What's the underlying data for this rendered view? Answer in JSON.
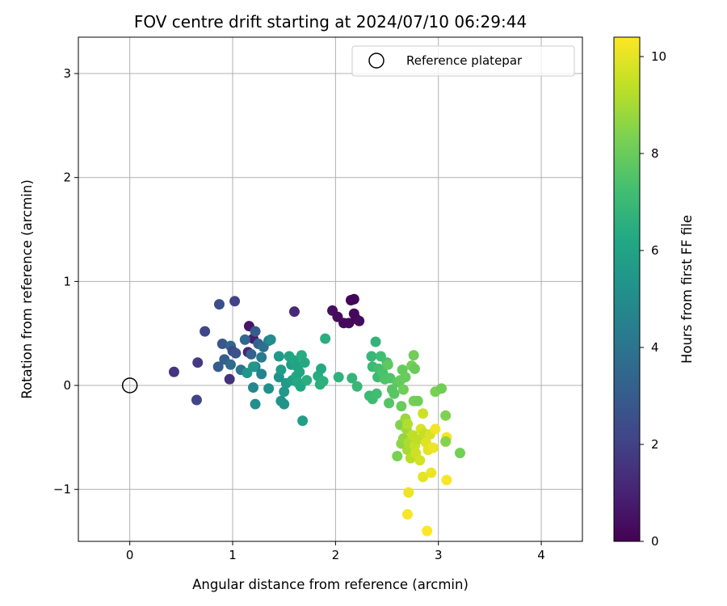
{
  "chart_data": {
    "type": "scatter",
    "title": "FOV centre drift starting at 2024/07/10 06:29:44",
    "xlabel": "Angular distance from reference (arcmin)",
    "ylabel": "Rotation from reference (arcmin)",
    "xlim": [
      -0.5,
      4.4
    ],
    "ylim": [
      -1.5,
      3.35
    ],
    "xticks": [
      "0",
      "1",
      "2",
      "3",
      "4"
    ],
    "yticks": [
      "−1",
      "0",
      "1",
      "2",
      "3"
    ],
    "grid": true,
    "legend": {
      "placement": "top-right",
      "entries": [
        "Reference platepar"
      ]
    },
    "reference_point": {
      "x": 0,
      "y": 0,
      "marker": "open-circle",
      "color": "#000000"
    },
    "colorbar": {
      "label": "Hours from first FF file",
      "min": 0,
      "max": 10.4,
      "ticks": [
        "0",
        "2",
        "4",
        "6",
        "8",
        "10"
      ],
      "colormap": "viridis"
    },
    "points": [
      {
        "x": 1.16,
        "y": 0.57,
        "h": 0.6
      },
      {
        "x": 1.2,
        "y": 0.45,
        "h": 0.9
      },
      {
        "x": 1.15,
        "y": 0.32,
        "h": 1.0
      },
      {
        "x": 1.97,
        "y": 0.72,
        "h": 0.4
      },
      {
        "x": 2.02,
        "y": 0.66,
        "h": 0.3
      },
      {
        "x": 2.08,
        "y": 0.6,
        "h": 0.2
      },
      {
        "x": 2.13,
        "y": 0.6,
        "h": 0.2
      },
      {
        "x": 2.15,
        "y": 0.82,
        "h": 0.1
      },
      {
        "x": 2.18,
        "y": 0.83,
        "h": 0.1
      },
      {
        "x": 2.18,
        "y": 0.69,
        "h": 0.2
      },
      {
        "x": 2.2,
        "y": 0.64,
        "h": 0.2
      },
      {
        "x": 2.23,
        "y": 0.62,
        "h": 0.3
      },
      {
        "x": 1.6,
        "y": 0.71,
        "h": 1.2
      },
      {
        "x": 0.43,
        "y": 0.13,
        "h": 1.6
      },
      {
        "x": 0.65,
        "y": -0.14,
        "h": 2.1
      },
      {
        "x": 0.66,
        "y": 0.22,
        "h": 1.8
      },
      {
        "x": 0.73,
        "y": 0.52,
        "h": 2.2
      },
      {
        "x": 0.87,
        "y": 0.78,
        "h": 2.5
      },
      {
        "x": 1.02,
        "y": 0.81,
        "h": 2.1
      },
      {
        "x": 0.97,
        "y": 0.06,
        "h": 1.5
      },
      {
        "x": 0.86,
        "y": 0.18,
        "h": 3.0
      },
      {
        "x": 0.92,
        "y": 0.25,
        "h": 3.1
      },
      {
        "x": 0.9,
        "y": 0.4,
        "h": 2.8
      },
      {
        "x": 0.98,
        "y": 0.38,
        "h": 3.4
      },
      {
        "x": 1.0,
        "y": 0.33,
        "h": 2.3
      },
      {
        "x": 1.03,
        "y": 0.31,
        "h": 2.7
      },
      {
        "x": 0.98,
        "y": 0.2,
        "h": 3.6
      },
      {
        "x": 1.08,
        "y": 0.15,
        "h": 4.0
      },
      {
        "x": 1.12,
        "y": 0.44,
        "h": 3.5
      },
      {
        "x": 1.18,
        "y": 0.3,
        "h": 3.2
      },
      {
        "x": 1.22,
        "y": 0.52,
        "h": 3.0
      },
      {
        "x": 1.25,
        "y": 0.4,
        "h": 3.3
      },
      {
        "x": 1.28,
        "y": 0.27,
        "h": 4.2
      },
      {
        "x": 1.3,
        "y": 0.37,
        "h": 3.8
      },
      {
        "x": 1.22,
        "y": 0.18,
        "h": 4.5
      },
      {
        "x": 1.28,
        "y": 0.11,
        "h": 4.6
      },
      {
        "x": 1.35,
        "y": 0.43,
        "h": 4.4
      },
      {
        "x": 1.2,
        "y": -0.02,
        "h": 4.8
      },
      {
        "x": 1.22,
        "y": -0.18,
        "h": 5.1
      },
      {
        "x": 1.35,
        "y": -0.03,
        "h": 5.2
      },
      {
        "x": 1.37,
        "y": 0.44,
        "h": 5.0
      },
      {
        "x": 1.14,
        "y": 0.12,
        "h": 5.4
      },
      {
        "x": 1.2,
        "y": 0.18,
        "h": 5.5
      },
      {
        "x": 1.45,
        "y": 0.08,
        "h": 5.3
      },
      {
        "x": 1.45,
        "y": 0.28,
        "h": 5.6
      },
      {
        "x": 1.47,
        "y": 0.15,
        "h": 5.7
      },
      {
        "x": 1.47,
        "y": -0.15,
        "h": 5.4
      },
      {
        "x": 1.5,
        "y": -0.18,
        "h": 5.3
      },
      {
        "x": 1.5,
        "y": -0.06,
        "h": 5.5
      },
      {
        "x": 1.52,
        "y": 0.02,
        "h": 5.6
      },
      {
        "x": 1.55,
        "y": 0.28,
        "h": 6.0
      },
      {
        "x": 1.57,
        "y": 0.2,
        "h": 5.8
      },
      {
        "x": 1.58,
        "y": 0.05,
        "h": 5.9
      },
      {
        "x": 1.6,
        "y": 0.24,
        "h": 6.1
      },
      {
        "x": 1.62,
        "y": 0.09,
        "h": 6.2
      },
      {
        "x": 1.63,
        "y": 0.18,
        "h": 6.0
      },
      {
        "x": 1.63,
        "y": 0.03,
        "h": 6.3
      },
      {
        "x": 1.65,
        "y": 0.13,
        "h": 6.1
      },
      {
        "x": 1.66,
        "y": -0.01,
        "h": 6.2
      },
      {
        "x": 1.67,
        "y": 0.29,
        "h": 6.4
      },
      {
        "x": 1.68,
        "y": -0.34,
        "h": 5.9
      },
      {
        "x": 1.7,
        "y": 0.22,
        "h": 6.3
      },
      {
        "x": 1.72,
        "y": 0.05,
        "h": 6.5
      },
      {
        "x": 1.83,
        "y": 0.09,
        "h": 6.4
      },
      {
        "x": 1.85,
        "y": 0.01,
        "h": 6.5
      },
      {
        "x": 1.86,
        "y": 0.16,
        "h": 6.3
      },
      {
        "x": 1.88,
        "y": 0.04,
        "h": 6.6
      },
      {
        "x": 1.9,
        "y": 0.45,
        "h": 6.5
      },
      {
        "x": 2.03,
        "y": 0.08,
        "h": 6.7
      },
      {
        "x": 2.16,
        "y": 0.07,
        "h": 6.8
      },
      {
        "x": 2.21,
        "y": -0.01,
        "h": 6.9
      },
      {
        "x": 2.33,
        "y": -0.1,
        "h": 7.0
      },
      {
        "x": 2.35,
        "y": 0.28,
        "h": 6.9
      },
      {
        "x": 2.36,
        "y": -0.13,
        "h": 7.1
      },
      {
        "x": 2.36,
        "y": 0.18,
        "h": 7.0
      },
      {
        "x": 2.39,
        "y": 0.42,
        "h": 6.8
      },
      {
        "x": 2.4,
        "y": -0.08,
        "h": 7.2
      },
      {
        "x": 2.41,
        "y": 0.08,
        "h": 7.1
      },
      {
        "x": 2.42,
        "y": 0.16,
        "h": 7.3
      },
      {
        "x": 2.44,
        "y": 0.28,
        "h": 7.2
      },
      {
        "x": 2.46,
        "y": 0.12,
        "h": 7.4
      },
      {
        "x": 2.48,
        "y": 0.06,
        "h": 7.5
      },
      {
        "x": 2.5,
        "y": 0.22,
        "h": 7.3
      },
      {
        "x": 2.51,
        "y": 0.2,
        "h": 7.8
      },
      {
        "x": 2.52,
        "y": -0.17,
        "h": 7.6
      },
      {
        "x": 2.53,
        "y": 0.07,
        "h": 7.5
      },
      {
        "x": 2.55,
        "y": -0.04,
        "h": 7.6
      },
      {
        "x": 2.57,
        "y": -0.08,
        "h": 7.7
      },
      {
        "x": 2.6,
        "y": 0.03,
        "h": 7.8
      },
      {
        "x": 2.63,
        "y": 0.05,
        "h": 7.9
      },
      {
        "x": 2.64,
        "y": -0.2,
        "h": 8.0
      },
      {
        "x": 2.65,
        "y": 0.15,
        "h": 7.9
      },
      {
        "x": 2.66,
        "y": -0.04,
        "h": 8.1
      },
      {
        "x": 2.68,
        "y": 0.08,
        "h": 8.0
      },
      {
        "x": 2.74,
        "y": 0.19,
        "h": 8.2
      },
      {
        "x": 2.76,
        "y": 0.29,
        "h": 8.1
      },
      {
        "x": 2.77,
        "y": 0.16,
        "h": 8.0
      },
      {
        "x": 2.76,
        "y": -0.15,
        "h": 8.2
      },
      {
        "x": 2.8,
        "y": -0.15,
        "h": 8.1
      },
      {
        "x": 2.6,
        "y": -0.68,
        "h": 8.3
      },
      {
        "x": 2.63,
        "y": -0.38,
        "h": 8.4
      },
      {
        "x": 2.64,
        "y": -0.56,
        "h": 8.6
      },
      {
        "x": 2.66,
        "y": -0.51,
        "h": 8.7
      },
      {
        "x": 2.68,
        "y": -0.32,
        "h": 8.8
      },
      {
        "x": 2.69,
        "y": -0.42,
        "h": 8.9
      },
      {
        "x": 2.7,
        "y": -0.62,
        "h": 9.0
      },
      {
        "x": 2.7,
        "y": -0.37,
        "h": 9.2
      },
      {
        "x": 2.71,
        "y": -0.55,
        "h": 9.1
      },
      {
        "x": 2.73,
        "y": -0.7,
        "h": 9.3
      },
      {
        "x": 2.75,
        "y": -0.48,
        "h": 9.4
      },
      {
        "x": 2.77,
        "y": -0.58,
        "h": 9.5
      },
      {
        "x": 2.78,
        "y": -0.65,
        "h": 9.6
      },
      {
        "x": 2.8,
        "y": -0.52,
        "h": 9.4
      },
      {
        "x": 2.82,
        "y": -0.72,
        "h": 9.7
      },
      {
        "x": 2.83,
        "y": -0.42,
        "h": 9.8
      },
      {
        "x": 2.85,
        "y": -0.27,
        "h": 9.6
      },
      {
        "x": 2.86,
        "y": -0.46,
        "h": 9.5
      },
      {
        "x": 2.88,
        "y": -0.55,
        "h": 9.9
      },
      {
        "x": 2.9,
        "y": -0.62,
        "h": 10.0
      },
      {
        "x": 2.92,
        "y": -0.47,
        "h": 9.8
      },
      {
        "x": 2.95,
        "y": -0.6,
        "h": 10.1
      },
      {
        "x": 2.97,
        "y": -0.42,
        "h": 10.2
      },
      {
        "x": 2.85,
        "y": -0.88,
        "h": 10.0
      },
      {
        "x": 2.93,
        "y": -0.84,
        "h": 10.1
      },
      {
        "x": 3.08,
        "y": -0.91,
        "h": 10.3
      },
      {
        "x": 3.08,
        "y": -0.5,
        "h": 10.2
      },
      {
        "x": 2.71,
        "y": -1.03,
        "h": 10.1
      },
      {
        "x": 2.7,
        "y": -1.24,
        "h": 10.3
      },
      {
        "x": 2.89,
        "y": -1.4,
        "h": 10.4
      },
      {
        "x": 2.97,
        "y": -0.06,
        "h": 8.3
      },
      {
        "x": 3.03,
        "y": -0.03,
        "h": 8.1
      },
      {
        "x": 3.07,
        "y": -0.29,
        "h": 8.4
      },
      {
        "x": 3.07,
        "y": -0.54,
        "h": 8.5
      },
      {
        "x": 3.21,
        "y": -0.65,
        "h": 8.2
      }
    ]
  }
}
